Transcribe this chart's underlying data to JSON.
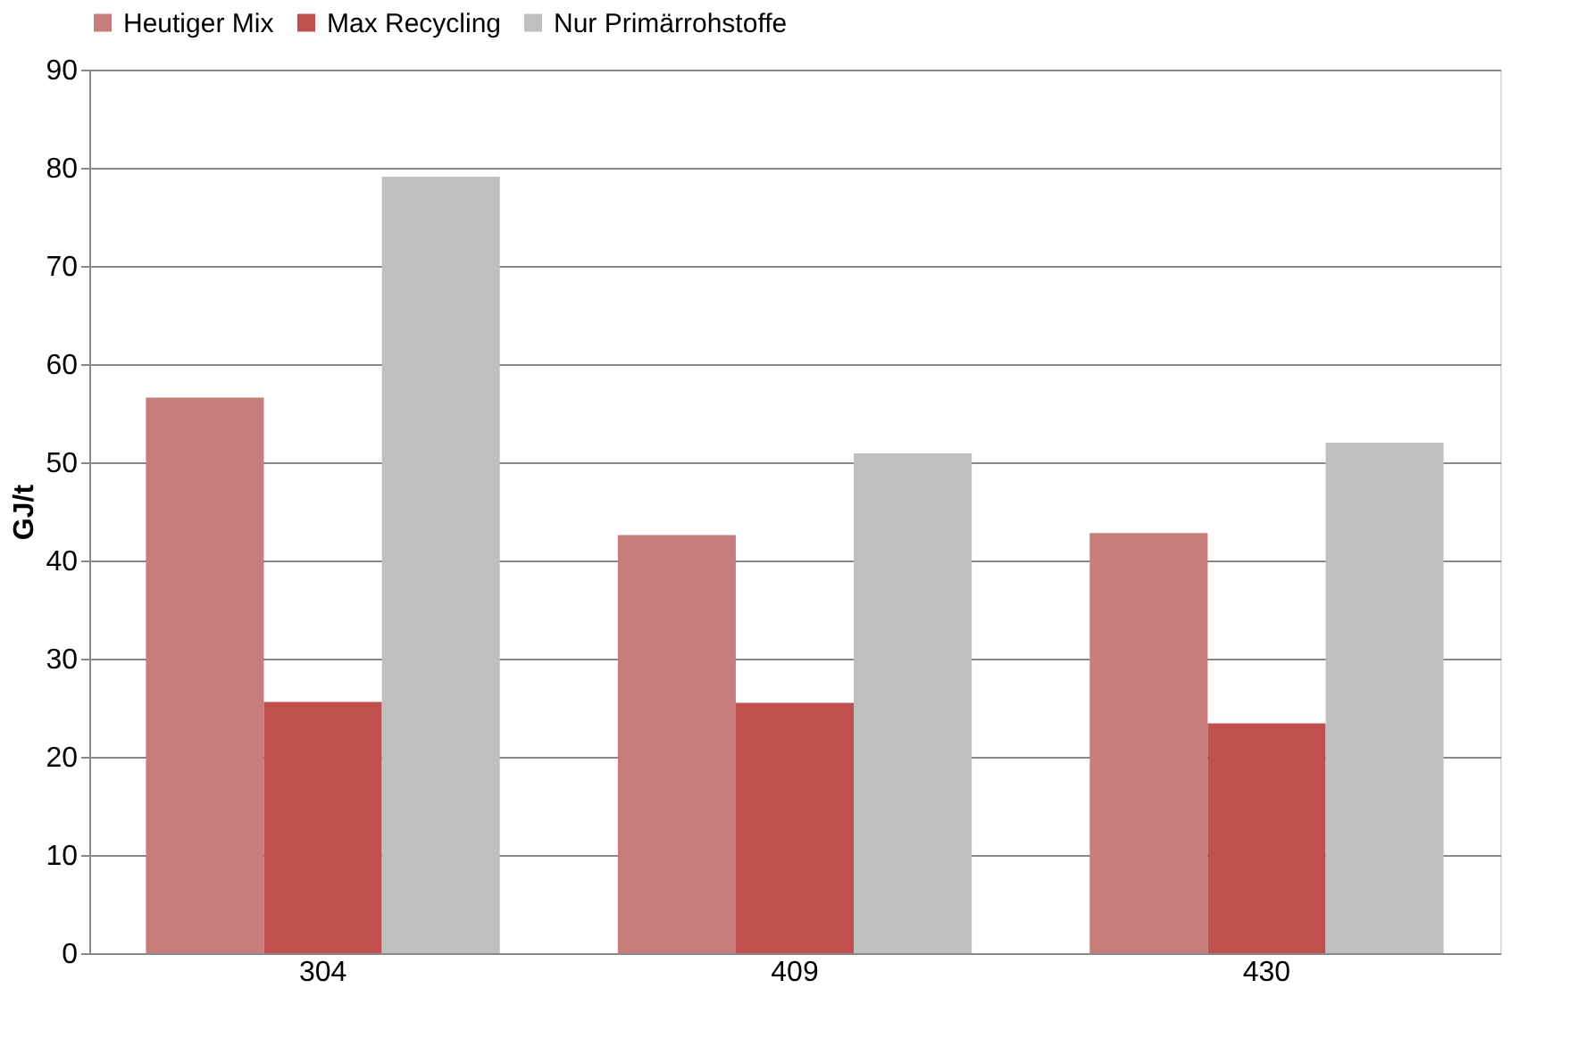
{
  "chart_data": {
    "type": "bar",
    "ylabel": "GJ/t",
    "categories": [
      "304",
      "409",
      "430"
    ],
    "series": [
      {
        "name": "Heutiger Mix",
        "color": "#c77d7b",
        "values": [
          56.6,
          42.6,
          42.8
        ]
      },
      {
        "name": "Max Recycling",
        "color": "#c0504d",
        "values": [
          25.6,
          25.5,
          23.4
        ]
      },
      {
        "name": "Nur Primärrohstoffe",
        "color": "#bfbfbf",
        "values": [
          79.1,
          50.9,
          52.0
        ]
      }
    ],
    "ylim": [
      0,
      90
    ],
    "yticks": [
      0,
      10,
      20,
      30,
      40,
      50,
      60,
      70,
      80,
      90
    ],
    "grid": "y",
    "legend": "top"
  }
}
